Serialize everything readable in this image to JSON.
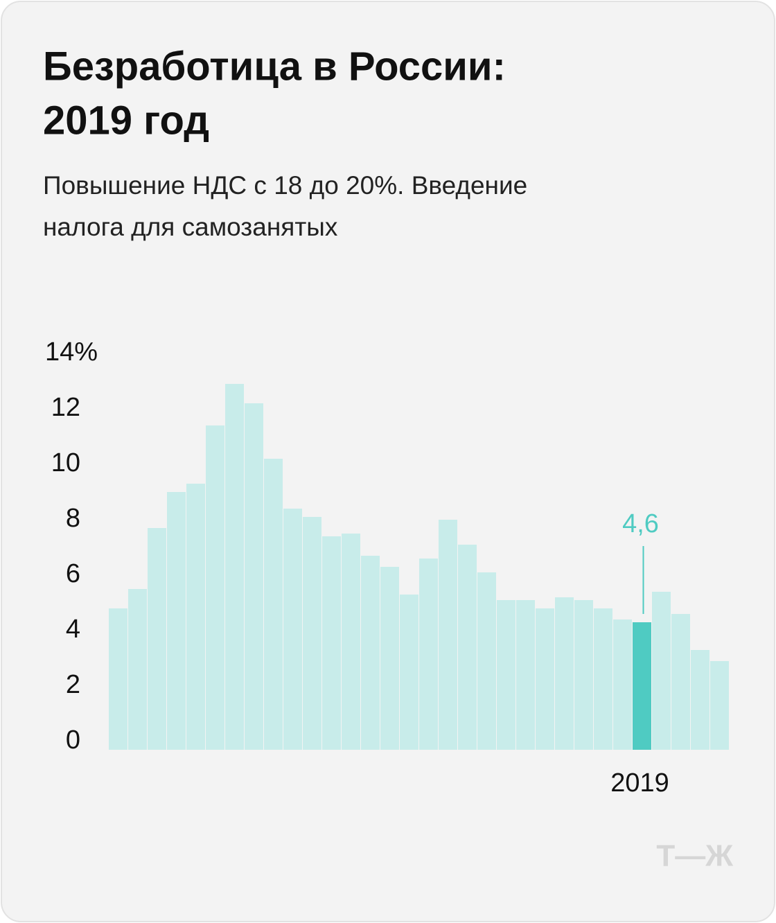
{
  "chart_data": {
    "type": "bar",
    "title": "Безработица в России:",
    "title_line2": "2019 год",
    "subtitle": "Повышение НДС с 18 до 20%. Введение",
    "subtitle_line2": "налога для самозанятых",
    "logo": "Т—Ж",
    "categories": [
      null,
      null,
      null,
      null,
      null,
      null,
      null,
      null,
      null,
      null,
      null,
      null,
      null,
      null,
      null,
      null,
      null,
      null,
      null,
      null,
      null,
      null,
      null,
      null,
      null,
      null,
      null,
      "2019",
      null,
      null,
      null,
      null
    ],
    "values": [
      5.1,
      5.8,
      8.0,
      9.3,
      9.6,
      11.7,
      13.2,
      12.5,
      10.5,
      8.7,
      8.4,
      7.7,
      7.8,
      7.0,
      6.6,
      5.6,
      6.9,
      8.3,
      7.4,
      6.4,
      5.4,
      5.4,
      5.1,
      5.5,
      5.4,
      5.1,
      4.7,
      4.6,
      5.7,
      4.9,
      3.6,
      3.2
    ],
    "value_labels": [
      null,
      null,
      null,
      null,
      null,
      null,
      null,
      null,
      null,
      null,
      null,
      null,
      null,
      null,
      null,
      null,
      null,
      null,
      null,
      null,
      null,
      null,
      null,
      null,
      null,
      null,
      null,
      "4,6",
      null,
      null,
      null,
      null
    ],
    "colors": [
      "#c8ecea",
      "#c8ecea",
      "#c8ecea",
      "#c8ecea",
      "#c8ecea",
      "#c8ecea",
      "#c8ecea",
      "#c8ecea",
      "#c8ecea",
      "#c8ecea",
      "#c8ecea",
      "#c8ecea",
      "#c8ecea",
      "#c8ecea",
      "#c8ecea",
      "#c8ecea",
      "#c8ecea",
      "#c8ecea",
      "#c8ecea",
      "#c8ecea",
      "#c8ecea",
      "#c8ecea",
      "#c8ecea",
      "#c8ecea",
      "#c8ecea",
      "#c8ecea",
      "#c8ecea",
      "#4fcbc2",
      "#c8ecea",
      "#c8ecea",
      "#c8ecea",
      "#c8ecea"
    ],
    "label_color": "#4fcbc2",
    "ylim": [
      0,
      14
    ],
    "yticks": [
      0,
      2,
      4,
      6,
      8,
      10,
      12,
      {
        "value": 14,
        "label": "14%"
      }
    ],
    "grid": false
  }
}
